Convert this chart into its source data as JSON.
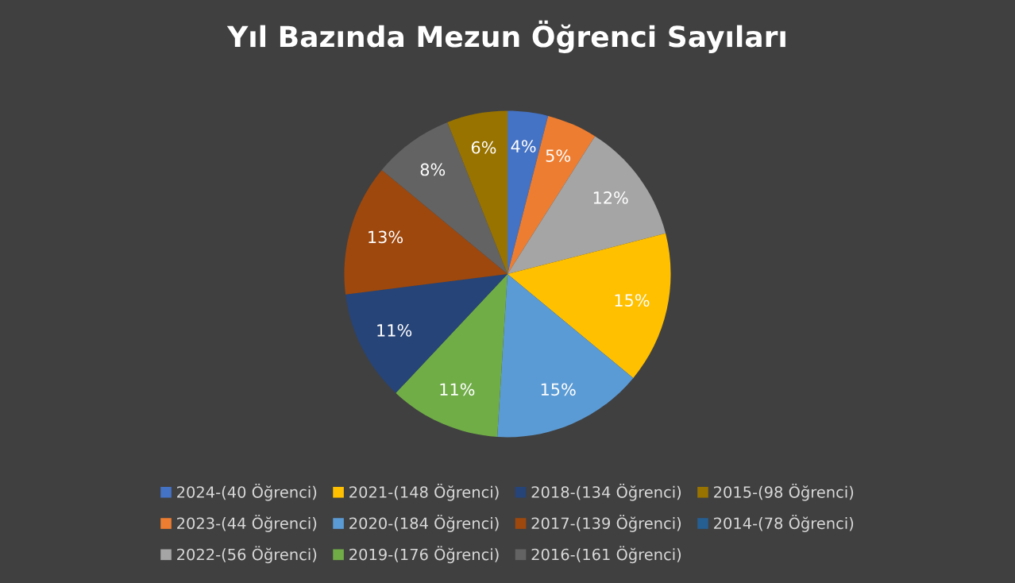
{
  "chart_data": {
    "type": "pie",
    "title": "Yıl Bazında Mezun Öğrenci Sayıları",
    "categories": [
      "2024-(40 Öğrenci)",
      "2023-(44 Öğrenci)",
      "2022-(56 Öğrenci)",
      "2021-(148 Öğrenci)",
      "2020-(184 Öğrenci)",
      "2019-(176 Öğrenci)",
      "2018-(134 Öğrenci)",
      "2017-(139 Öğrenci)",
      "2016-(161 Öğrenci)",
      "2015-(98 Öğrenci)",
      "2014-(78 Öğrenci)"
    ],
    "values": [
      4,
      5,
      12,
      15,
      15,
      11,
      11,
      13,
      8,
      6,
      0
    ],
    "value_labels": [
      "4%",
      "5%",
      "12%",
      "15%",
      "15%",
      "11%",
      "11%",
      "13%",
      "8%",
      "6%",
      null
    ],
    "colors": [
      "#4472c4",
      "#ed7d31",
      "#a5a5a5",
      "#ffc000",
      "#5b9bd5",
      "#70ad47",
      "#264478",
      "#9e480e",
      "#636363",
      "#997300",
      "#255e91"
    ],
    "legend": "bottom"
  }
}
